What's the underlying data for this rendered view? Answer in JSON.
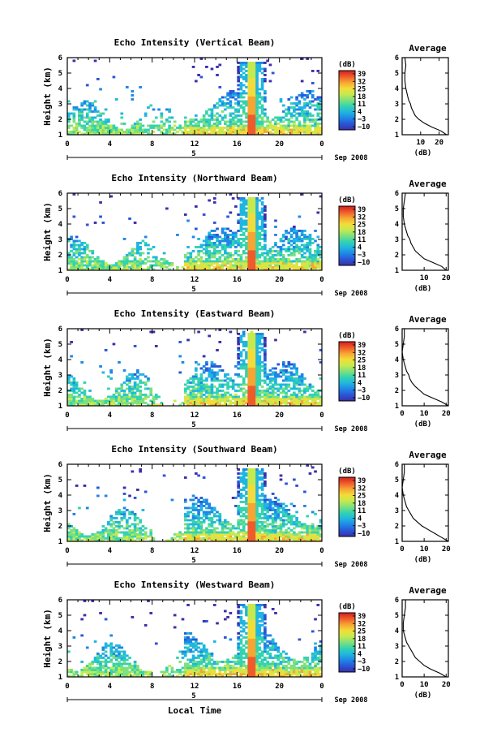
{
  "figure": {
    "x_label": "Local Time",
    "date_label": "Sep 2008",
    "day_marker": "5",
    "colorbar_unit": "(dB)",
    "colorbar_ticks": [
      "39",
      "32",
      "25",
      "18",
      "11",
      "4",
      "−3",
      "−10"
    ],
    "colors": [
      "#3b2fa8",
      "#2a55d6",
      "#1f86e6",
      "#1fb6e0",
      "#33d3b0",
      "#7fe07d",
      "#c6ea4e",
      "#f3dc3a",
      "#f7a532",
      "#ef5b2a",
      "#d11f1f"
    ],
    "avg_title": "Average",
    "avg_xlabel": "(dB)"
  },
  "chart_data": [
    {
      "type": "heatmap",
      "title": "Echo Intensity (Vertical Beam)",
      "ylabel": "Height (km)",
      "x_ticks": [
        "0",
        "4",
        "8",
        "12",
        "16",
        "20",
        "0"
      ],
      "y_ticks": [
        "1",
        "2",
        "3",
        "4",
        "5",
        "6"
      ],
      "xlim": [
        0,
        24
      ],
      "ylim": [
        1,
        6
      ],
      "clim": [
        -10,
        39
      ],
      "features": {
        "peak_hour": 17.4,
        "high_top_km": 5.8
      },
      "profile": {
        "title": "Average",
        "xlabel": "(dB)",
        "x_ticks": [
          "10",
          "20"
        ],
        "xlim": [
          0,
          25
        ],
        "heights": [
          1.0,
          1.25,
          1.5,
          1.75,
          2.0,
          2.25,
          2.5,
          2.75,
          3.0,
          3.25,
          3.5,
          3.75,
          4.0,
          4.5,
          5.0,
          5.5,
          6.0
        ],
        "values": [
          24,
          21,
          16,
          12,
          9,
          7,
          6,
          5,
          4.5,
          3.5,
          3,
          2.5,
          2,
          1.5,
          1.5,
          2,
          1.5
        ]
      }
    },
    {
      "type": "heatmap",
      "title": "Echo Intensity (Northward Beam)",
      "ylabel": "Height (km)",
      "x_ticks": [
        "0",
        "4",
        "8",
        "12",
        "16",
        "20",
        "0"
      ],
      "y_ticks": [
        "1",
        "2",
        "3",
        "4",
        "5",
        "6"
      ],
      "xlim": [
        0,
        24
      ],
      "ylim": [
        1,
        6
      ],
      "clim": [
        -10,
        39
      ],
      "features": {
        "peak_hour": 17.4,
        "high_top_km": 5.8
      },
      "profile": {
        "title": "Average",
        "xlabel": "(dB)",
        "x_ticks": [
          "10",
          "20"
        ],
        "xlim": [
          0,
          21
        ],
        "heights": [
          1.0,
          1.25,
          1.5,
          1.75,
          2.0,
          2.25,
          2.5,
          2.75,
          3.0,
          3.25,
          3.5,
          3.75,
          4.0,
          4.5,
          5.0,
          5.5,
          6.0
        ],
        "values": [
          20,
          18,
          14,
          10,
          8,
          6,
          5,
          4,
          3.5,
          2.5,
          2,
          1.5,
          1,
          0.5,
          0.5,
          1,
          1.5
        ]
      }
    },
    {
      "type": "heatmap",
      "title": "Echo Intensity (Eastward Beam)",
      "ylabel": "Height (km)",
      "x_ticks": [
        "0",
        "4",
        "8",
        "12",
        "16",
        "20",
        "0"
      ],
      "y_ticks": [
        "1",
        "2",
        "3",
        "4",
        "5",
        "6"
      ],
      "xlim": [
        0,
        24
      ],
      "ylim": [
        1,
        6
      ],
      "clim": [
        -10,
        39
      ],
      "features": {
        "peak_hour": 17.4,
        "high_top_km": 5.8
      },
      "profile": {
        "title": "Average",
        "xlabel": "(dB)",
        "x_ticks": [
          "0",
          "10",
          "20"
        ],
        "xlim": [
          0,
          21
        ],
        "heights": [
          1.0,
          1.25,
          1.5,
          1.75,
          2.0,
          2.25,
          2.5,
          2.75,
          3.0,
          3.25,
          3.5,
          3.75,
          4.0,
          4.5,
          5.0,
          5.5,
          6.0
        ],
        "values": [
          21,
          18,
          14,
          10,
          8,
          6,
          4.5,
          3.5,
          3,
          2,
          1.5,
          1,
          0.5,
          0,
          0.5,
          1,
          1
        ]
      }
    },
    {
      "type": "heatmap",
      "title": "Echo Intensity (Southward Beam)",
      "ylabel": "Height (km)",
      "x_ticks": [
        "0",
        "4",
        "8",
        "12",
        "16",
        "20",
        "0"
      ],
      "y_ticks": [
        "1",
        "2",
        "3",
        "4",
        "5",
        "6"
      ],
      "xlim": [
        0,
        24
      ],
      "ylim": [
        1,
        6
      ],
      "clim": [
        -10,
        39
      ],
      "features": {
        "peak_hour": 17.4,
        "high_top_km": 5.8
      },
      "profile": {
        "title": "Average",
        "xlabel": "(dB)",
        "x_ticks": [
          "0",
          "10",
          "20"
        ],
        "xlim": [
          0,
          21
        ],
        "heights": [
          1.0,
          1.25,
          1.5,
          1.75,
          2.0,
          2.25,
          2.5,
          2.75,
          3.0,
          3.25,
          3.5,
          3.75,
          4.0,
          4.5,
          5.0,
          5.5,
          6.0
        ],
        "values": [
          21,
          18,
          15,
          12,
          9,
          7,
          5,
          4,
          3,
          2,
          1.5,
          1,
          0.5,
          0,
          0.5,
          1,
          1
        ]
      }
    },
    {
      "type": "heatmap",
      "title": "Echo Intensity (Westward Beam)",
      "ylabel": "Height (km)",
      "x_ticks": [
        "0",
        "4",
        "8",
        "12",
        "16",
        "20",
        "0"
      ],
      "y_ticks": [
        "1",
        "2",
        "3",
        "4",
        "5",
        "6"
      ],
      "xlim": [
        0,
        24
      ],
      "ylim": [
        1,
        6
      ],
      "clim": [
        -10,
        39
      ],
      "features": {
        "peak_hour": 17.4,
        "high_top_km": 5.8
      },
      "profile": {
        "title": "Average",
        "xlabel": "(dB)",
        "x_ticks": [
          "0",
          "10",
          "20"
        ],
        "xlim": [
          0,
          21
        ],
        "heights": [
          1.0,
          1.25,
          1.5,
          1.75,
          2.0,
          2.25,
          2.5,
          2.75,
          3.0,
          3.25,
          3.5,
          3.75,
          4.0,
          4.5,
          5.0,
          5.5,
          6.0
        ],
        "values": [
          20,
          17,
          13,
          10,
          8,
          6,
          5,
          4,
          3,
          2,
          1.5,
          1,
          0.5,
          0.5,
          1,
          1.5,
          1.5
        ]
      }
    }
  ]
}
